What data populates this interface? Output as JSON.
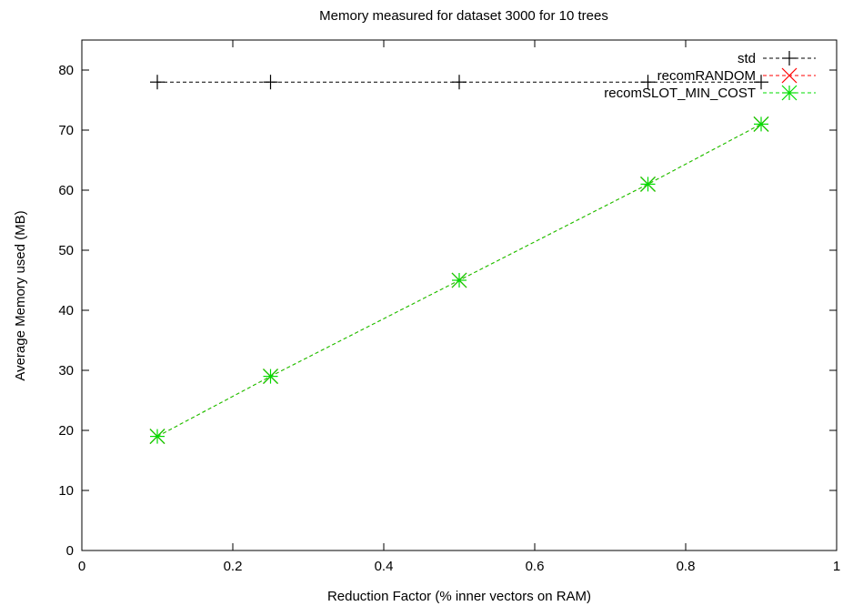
{
  "chart_data": {
    "type": "line",
    "title": "Memory measured for dataset 3000 for 10 trees",
    "xlabel": "Reduction Factor (% inner vectors on RAM)",
    "ylabel": "Average Memory used (MB)",
    "xlim": [
      0,
      1
    ],
    "ylim": [
      0,
      85
    ],
    "xticks": [
      0,
      0.2,
      0.4,
      0.6,
      0.8,
      1
    ],
    "xtick_labels": [
      "0",
      "0.2",
      "0.4",
      "0.6",
      "0.8",
      "1"
    ],
    "yticks": [
      0,
      10,
      20,
      30,
      40,
      50,
      60,
      70,
      80
    ],
    "ytick_labels": [
      "0",
      "10",
      "20",
      "30",
      "40",
      "50",
      "60",
      "70",
      "80"
    ],
    "grid": false,
    "legend_position": "top-right",
    "x": [
      0.1,
      0.25,
      0.5,
      0.75,
      0.9
    ],
    "series": [
      {
        "name": "std",
        "values": [
          78,
          78,
          78,
          78,
          78
        ],
        "color": "#000000",
        "marker": "plus"
      },
      {
        "name": "recomRANDOM",
        "values": [
          19,
          29,
          45,
          61,
          71
        ],
        "color": "#ff0000",
        "marker": "cross"
      },
      {
        "name": "recomSLOT_MIN_COST",
        "values": [
          19,
          29,
          45,
          61,
          71
        ],
        "color": "#00dd00",
        "marker": "star"
      }
    ]
  }
}
